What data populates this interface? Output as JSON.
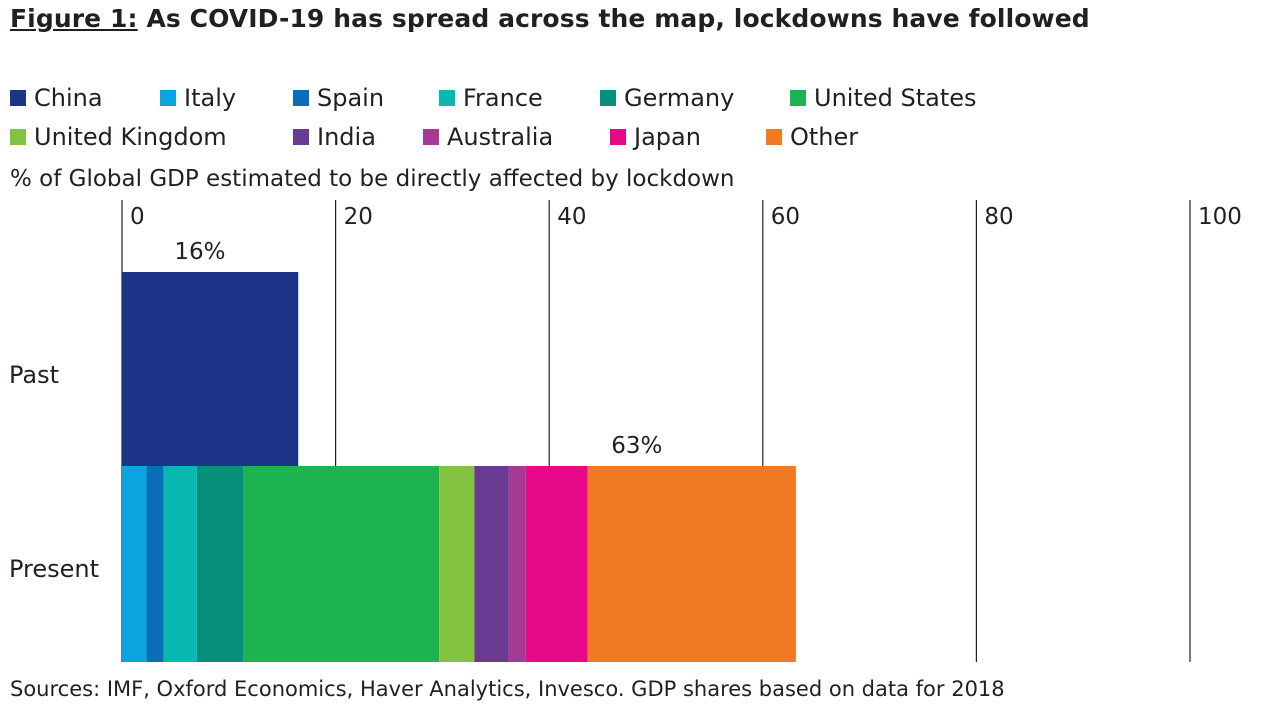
{
  "title": {
    "figure_label": "Figure 1:",
    "text": "As COVID-19 has spread across the map, lockdowns have followed"
  },
  "legend": [
    {
      "label": "China",
      "color": "#1b3487"
    },
    {
      "label": "Italy",
      "color": "#0aa5e0"
    },
    {
      "label": "Spain",
      "color": "#0a6db8"
    },
    {
      "label": "France",
      "color": "#07b8b0"
    },
    {
      "label": "Germany",
      "color": "#078f7a"
    },
    {
      "label": "United States",
      "color": "#1db350"
    },
    {
      "label": "United Kingdom",
      "color": "#84c341"
    },
    {
      "label": "India",
      "color": "#6a3a93"
    },
    {
      "label": "Australia",
      "color": "#a53a96"
    },
    {
      "label": "Japan",
      "color": "#e8098a"
    },
    {
      "label": "Other",
      "color": "#f07b22"
    }
  ],
  "chart_data": {
    "type": "bar",
    "orientation": "horizontal",
    "stacked": true,
    "ylabel": "% of Global GDP estimated to be directly affected by lockdown",
    "xlim": [
      0,
      100
    ],
    "xticks": [
      "0",
      "20",
      "40",
      "60",
      "80",
      "100"
    ],
    "grid": true,
    "legend_position": "top",
    "categories": [
      "Past",
      "Present"
    ],
    "series": [
      {
        "name": "China",
        "values": [
          16.5,
          0
        ]
      },
      {
        "name": "Italy",
        "values": [
          0,
          2.3
        ]
      },
      {
        "name": "Spain",
        "values": [
          0,
          1.6
        ]
      },
      {
        "name": "France",
        "values": [
          0,
          3.1
        ]
      },
      {
        "name": "Germany",
        "values": [
          0,
          4.4
        ]
      },
      {
        "name": "United States",
        "values": [
          0,
          18.3
        ]
      },
      {
        "name": "United Kingdom",
        "values": [
          0,
          3.3
        ]
      },
      {
        "name": "India",
        "values": [
          0,
          3.2
        ]
      },
      {
        "name": "Australia",
        "values": [
          0,
          1.6
        ]
      },
      {
        "name": "Japan",
        "values": [
          0,
          5.8
        ]
      },
      {
        "name": "Other",
        "values": [
          0,
          19.5
        ]
      }
    ],
    "annotations": [
      {
        "category": "Past",
        "text": "16%",
        "x": 7.3
      },
      {
        "category": "Present",
        "text": "63%",
        "x": 48.2
      }
    ]
  },
  "source": "Sources: IMF, Oxford Economics, Haver Analytics, Invesco. GDP shares based on data for 2018"
}
